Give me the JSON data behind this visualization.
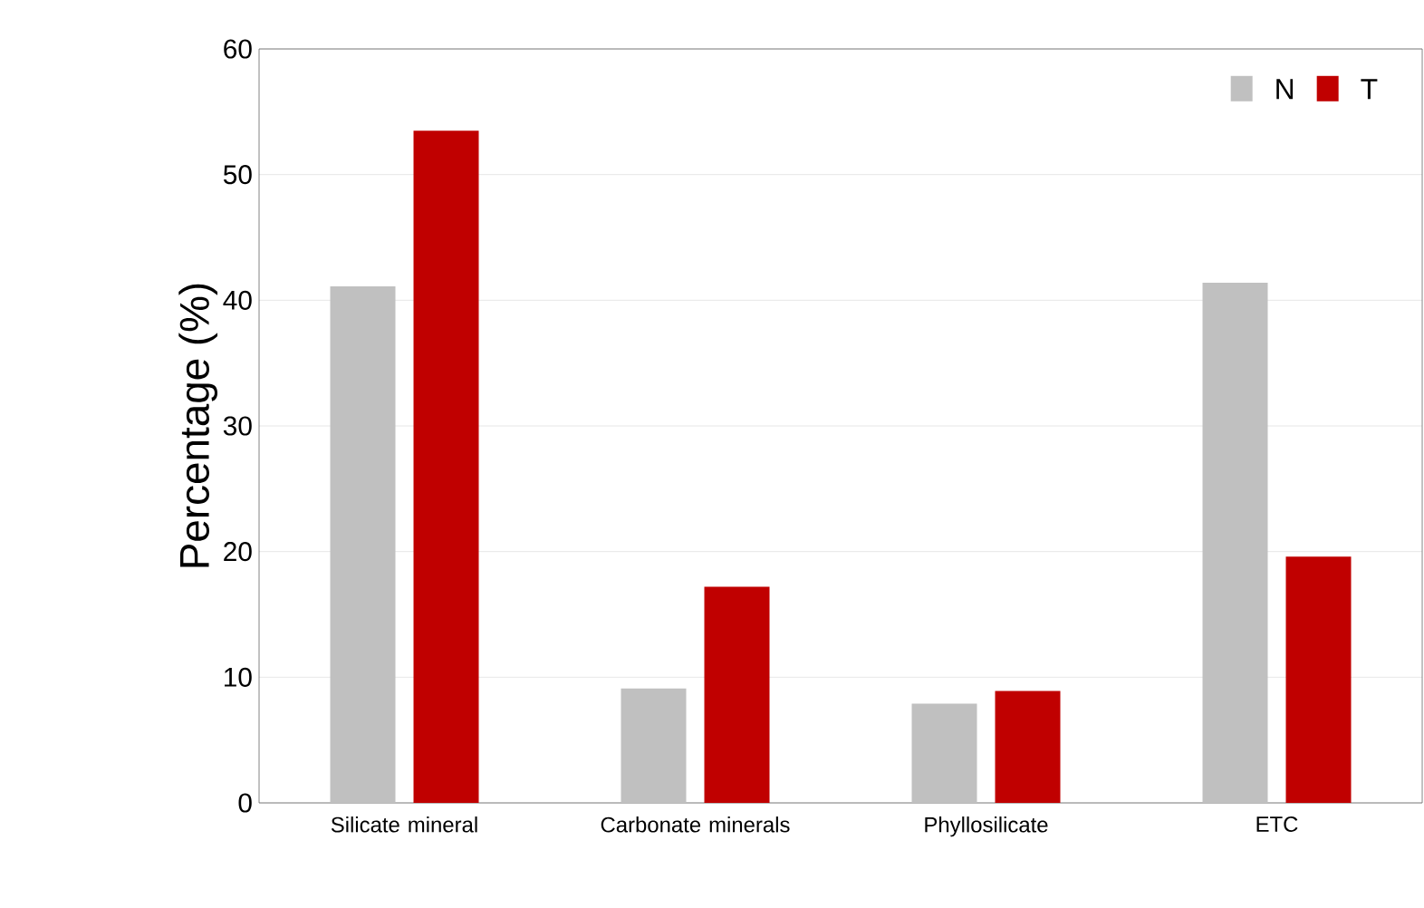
{
  "chart_data": {
    "type": "bar",
    "ylabel": "Percentage (%)",
    "categories": [
      "Silicate mineral",
      "Carbonate minerals",
      "Phyllosilicate",
      "ETC"
    ],
    "series": [
      {
        "name": "N",
        "color": "#c0c0c0",
        "values": [
          41.1,
          9.1,
          7.9,
          41.4
        ]
      },
      {
        "name": "T",
        "color": "#c00000",
        "values": [
          53.5,
          17.2,
          8.9,
          19.6
        ]
      }
    ],
    "ylim": [
      0,
      60
    ],
    "yticks": [
      0,
      10,
      20,
      30,
      40,
      50,
      60
    ],
    "grid": "y",
    "legend": "top right"
  }
}
